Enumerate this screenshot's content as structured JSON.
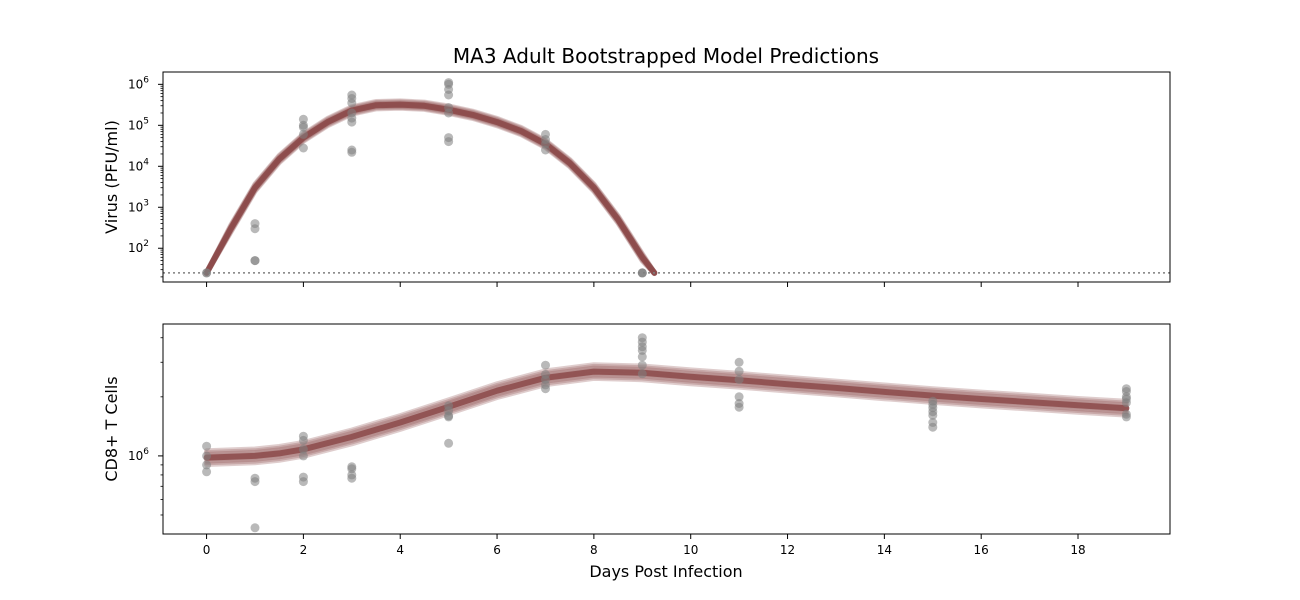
{
  "chart_data": {
    "type": "scatter",
    "title": "MA3 Adult Bootstrapped Model Predictions",
    "xlabel": "Days Post Infection",
    "xlim": [
      -0.9,
      19.9
    ],
    "xticks": [
      "0",
      "2",
      "4",
      "6",
      "8",
      "10",
      "12",
      "14",
      "16",
      "18"
    ],
    "colors": {
      "data_points": "#808080",
      "model_band": "#8c4a4a",
      "limit_line": "#7f7f7f"
    },
    "panels": [
      {
        "name": "virus",
        "ylabel": "Virus (PFU/ml)",
        "yscale": "log",
        "ylim": [
          15,
          2000000
        ],
        "yticks": [
          {
            "base": "10",
            "exp": "2",
            "value": 100
          },
          {
            "base": "10",
            "exp": "3",
            "value": 1000
          },
          {
            "base": "10",
            "exp": "4",
            "value": 10000
          },
          {
            "base": "10",
            "exp": "5",
            "value": 100000
          },
          {
            "base": "10",
            "exp": "6",
            "value": 1000000
          }
        ],
        "detection_limit": 25,
        "points": [
          [
            0,
            25
          ],
          [
            0,
            25
          ],
          [
            1,
            400
          ],
          [
            1,
            300
          ],
          [
            1,
            50
          ],
          [
            1,
            50
          ],
          [
            2,
            140000
          ],
          [
            2,
            100000
          ],
          [
            2,
            90000
          ],
          [
            2,
            60000
          ],
          [
            2,
            28000
          ],
          [
            3,
            550000
          ],
          [
            3,
            450000
          ],
          [
            3,
            350000
          ],
          [
            3,
            200000
          ],
          [
            3,
            150000
          ],
          [
            3,
            120000
          ],
          [
            3,
            25000
          ],
          [
            3,
            22000
          ],
          [
            5,
            1100000
          ],
          [
            5,
            1000000
          ],
          [
            5,
            750000
          ],
          [
            5,
            550000
          ],
          [
            5,
            270000
          ],
          [
            5,
            200000
          ],
          [
            5,
            50000
          ],
          [
            5,
            40000
          ],
          [
            7,
            60000
          ],
          [
            7,
            45000
          ],
          [
            7,
            35000
          ],
          [
            7,
            25000
          ],
          [
            9,
            25
          ],
          [
            9,
            25
          ],
          [
            9,
            25
          ]
        ],
        "model": [
          [
            0,
            25
          ],
          [
            0.5,
            300
          ],
          [
            1,
            3000
          ],
          [
            1.5,
            15000
          ],
          [
            2,
            50000
          ],
          [
            2.5,
            120000
          ],
          [
            3,
            230000
          ],
          [
            3.5,
            310000
          ],
          [
            4,
            320000
          ],
          [
            4.5,
            300000
          ],
          [
            5,
            240000
          ],
          [
            5.5,
            180000
          ],
          [
            6,
            120000
          ],
          [
            6.5,
            72000
          ],
          [
            7,
            35000
          ],
          [
            7.5,
            12000
          ],
          [
            8,
            3000
          ],
          [
            8.5,
            500
          ],
          [
            9,
            60
          ],
          [
            9.25,
            25
          ]
        ],
        "model_spread": 0.09
      },
      {
        "name": "cd8",
        "ylabel": "CD8+ T Cells",
        "yscale": "log",
        "ylim": [
          400000,
          4700000
        ],
        "yticks": [
          {
            "base": "10",
            "exp": "6",
            "value": 1000000
          }
        ],
        "points": [
          [
            0,
            1120000
          ],
          [
            0,
            1000000
          ],
          [
            0,
            900000
          ],
          [
            0,
            830000
          ],
          [
            1,
            770000
          ],
          [
            1,
            740000
          ],
          [
            1,
            430000
          ],
          [
            2,
            1260000
          ],
          [
            2,
            1200000
          ],
          [
            2,
            1080000
          ],
          [
            2,
            1000000
          ],
          [
            2,
            780000
          ],
          [
            2,
            740000
          ],
          [
            3,
            880000
          ],
          [
            3,
            860000
          ],
          [
            3,
            800000
          ],
          [
            3,
            770000
          ],
          [
            5,
            1800000
          ],
          [
            5,
            1700000
          ],
          [
            5,
            1600000
          ],
          [
            5,
            1580000
          ],
          [
            5,
            1160000
          ],
          [
            7,
            2900000
          ],
          [
            7,
            2600000
          ],
          [
            7,
            2450000
          ],
          [
            7,
            2300000
          ],
          [
            7,
            2200000
          ],
          [
            9,
            4000000
          ],
          [
            9,
            3800000
          ],
          [
            9,
            3600000
          ],
          [
            9,
            3450000
          ],
          [
            9,
            3200000
          ],
          [
            9,
            2900000
          ],
          [
            9,
            2620000
          ],
          [
            11,
            3000000
          ],
          [
            11,
            2700000
          ],
          [
            11,
            2450000
          ],
          [
            11,
            2000000
          ],
          [
            11,
            1850000
          ],
          [
            11,
            1770000
          ],
          [
            15,
            1900000
          ],
          [
            15,
            1830000
          ],
          [
            15,
            1760000
          ],
          [
            15,
            1680000
          ],
          [
            15,
            1610000
          ],
          [
            15,
            1480000
          ],
          [
            15,
            1400000
          ],
          [
            19,
            2200000
          ],
          [
            19,
            2130000
          ],
          [
            19,
            2000000
          ],
          [
            19,
            1950000
          ],
          [
            19,
            1870000
          ],
          [
            19,
            1630000
          ],
          [
            19,
            1580000
          ]
        ],
        "model": [
          [
            0,
            980000
          ],
          [
            1,
            1000000
          ],
          [
            1.5,
            1030000
          ],
          [
            2,
            1080000
          ],
          [
            3,
            1250000
          ],
          [
            4,
            1480000
          ],
          [
            5,
            1780000
          ],
          [
            6,
            2150000
          ],
          [
            7,
            2500000
          ],
          [
            8,
            2690000
          ],
          [
            9,
            2650000
          ],
          [
            10,
            2530000
          ],
          [
            11,
            2430000
          ],
          [
            12,
            2320000
          ],
          [
            13,
            2220000
          ],
          [
            14,
            2120000
          ],
          [
            15,
            2030000
          ],
          [
            16,
            1950000
          ],
          [
            17,
            1880000
          ],
          [
            18,
            1810000
          ],
          [
            19,
            1750000
          ]
        ],
        "model_spread": 0.035
      }
    ]
  }
}
